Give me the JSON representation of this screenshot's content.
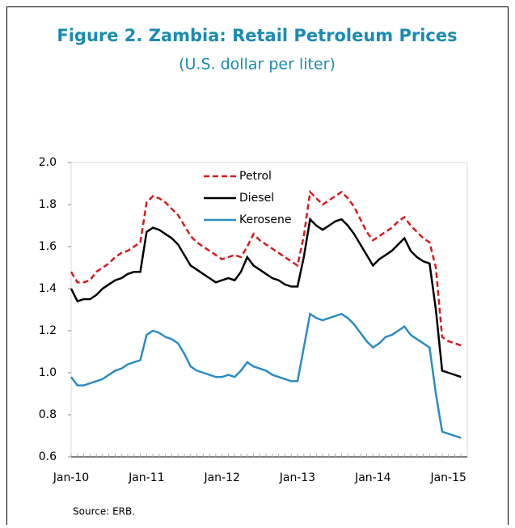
{
  "chart_data": {
    "type": "line",
    "title": "Figure 2.  Zambia: Retail Petroleum Prices",
    "subtitle": "(U.S. dollar per liter)",
    "source": "Source: ERB.",
    "categories": [
      "Jan-10",
      null,
      null,
      null,
      null,
      null,
      null,
      null,
      null,
      null,
      null,
      null,
      "Jan-11",
      null,
      null,
      null,
      null,
      null,
      null,
      null,
      null,
      null,
      null,
      null,
      "Jan-12",
      null,
      null,
      null,
      null,
      null,
      null,
      null,
      null,
      null,
      null,
      null,
      "Jan-13",
      null,
      null,
      null,
      null,
      null,
      null,
      null,
      null,
      null,
      null,
      null,
      "Jan-14",
      null,
      null,
      null,
      null,
      null,
      null,
      null,
      null,
      null,
      null,
      null,
      "Jan-15",
      null,
      null
    ],
    "series": [
      {
        "name": "Petrol",
        "color": "#d7191c",
        "dash": true,
        "values": [
          1.48,
          1.43,
          1.43,
          1.44,
          1.48,
          1.5,
          1.52,
          1.55,
          1.57,
          1.58,
          1.6,
          1.62,
          1.81,
          1.84,
          1.83,
          1.81,
          1.78,
          1.75,
          1.7,
          1.65,
          1.62,
          1.6,
          1.58,
          1.56,
          1.54,
          1.55,
          1.56,
          1.55,
          1.6,
          1.66,
          1.63,
          1.61,
          1.59,
          1.57,
          1.55,
          1.53,
          1.51,
          1.65,
          1.86,
          1.83,
          1.8,
          1.82,
          1.84,
          1.86,
          1.83,
          1.79,
          1.73,
          1.67,
          1.63,
          1.65,
          1.67,
          1.69,
          1.72,
          1.74,
          1.7,
          1.67,
          1.64,
          1.62,
          1.5,
          1.17,
          1.15,
          1.14,
          1.13
        ]
      },
      {
        "name": "Diesel",
        "color": "#000000",
        "dash": false,
        "values": [
          1.4,
          1.34,
          1.35,
          1.35,
          1.37,
          1.4,
          1.42,
          1.44,
          1.45,
          1.47,
          1.48,
          1.48,
          1.67,
          1.69,
          1.68,
          1.66,
          1.64,
          1.61,
          1.56,
          1.51,
          1.49,
          1.47,
          1.45,
          1.43,
          1.44,
          1.45,
          1.44,
          1.48,
          1.55,
          1.51,
          1.49,
          1.47,
          1.45,
          1.44,
          1.42,
          1.41,
          1.41,
          1.55,
          1.73,
          1.7,
          1.68,
          1.7,
          1.72,
          1.73,
          1.7,
          1.66,
          1.61,
          1.56,
          1.51,
          1.54,
          1.56,
          1.58,
          1.61,
          1.64,
          1.58,
          1.55,
          1.53,
          1.52,
          1.3,
          1.01,
          1.0,
          0.99,
          0.98
        ]
      },
      {
        "name": "Kerosene",
        "color": "#2b8cc4",
        "dash": false,
        "values": [
          0.98,
          0.94,
          0.94,
          0.95,
          0.96,
          0.97,
          0.99,
          1.01,
          1.02,
          1.04,
          1.05,
          1.06,
          1.18,
          1.2,
          1.19,
          1.17,
          1.16,
          1.14,
          1.09,
          1.03,
          1.01,
          1.0,
          0.99,
          0.98,
          0.98,
          0.99,
          0.98,
          1.01,
          1.05,
          1.03,
          1.02,
          1.01,
          0.99,
          0.98,
          0.97,
          0.96,
          0.96,
          1.12,
          1.28,
          1.26,
          1.25,
          1.26,
          1.27,
          1.28,
          1.26,
          1.23,
          1.19,
          1.15,
          1.12,
          1.14,
          1.17,
          1.18,
          1.2,
          1.22,
          1.18,
          1.16,
          1.14,
          1.12,
          0.9,
          0.72,
          0.71,
          0.7,
          0.69
        ]
      }
    ],
    "ylim": [
      0.6,
      2.0
    ],
    "yticks": [
      {
        "value": 0.6,
        "label": "0.6"
      },
      {
        "value": 0.8,
        "label": "0.8"
      },
      {
        "value": 1.0,
        "label": "1.0"
      },
      {
        "value": 1.2,
        "label": "1.2"
      },
      {
        "value": 1.4,
        "label": "1.4"
      },
      {
        "value": 1.6,
        "label": "1.6"
      },
      {
        "value": 1.8,
        "label": "1.8"
      },
      {
        "value": 2.0,
        "label": "2.0"
      }
    ],
    "grid": false,
    "legend": "top"
  }
}
